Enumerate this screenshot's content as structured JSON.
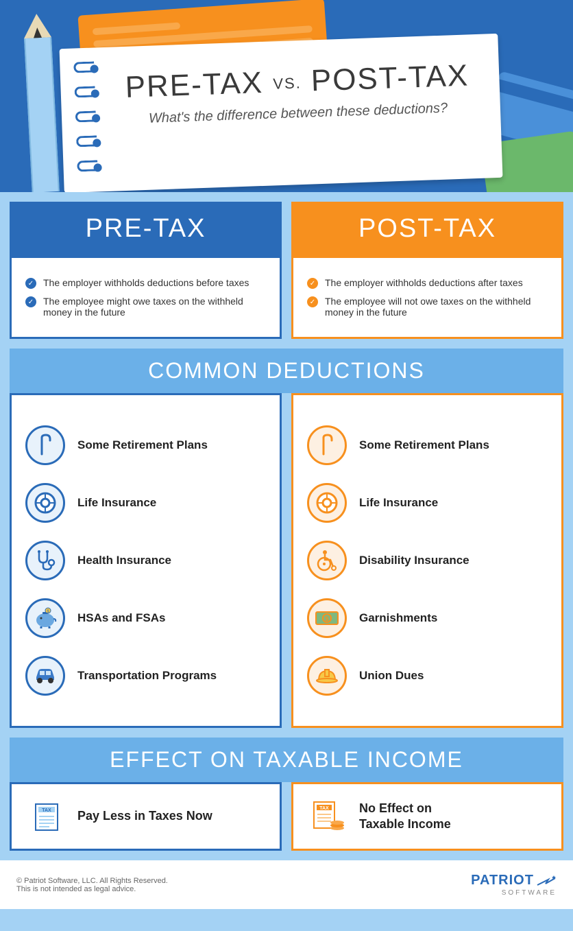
{
  "hero": {
    "title_left": "PRE-TAX",
    "title_vs": "VS.",
    "title_right": "POST-TAX",
    "subtitle": "What's the difference between these deductions?"
  },
  "columns": {
    "pre": {
      "header": "PRE-TAX",
      "color": "#2a6bb8"
    },
    "post": {
      "header": "POST-TAX",
      "color": "#f7901e"
    }
  },
  "intro": {
    "pre": [
      "The employer withholds deductions before taxes",
      "The employee might owe taxes on the withheld money in the future"
    ],
    "post": [
      "The employer withholds deductions after taxes",
      "The employee will not owe taxes on the withheld money in the future"
    ]
  },
  "sections": {
    "common": "COMMON DEDUCTIONS",
    "effect": "EFFECT ON TAXABLE INCOME"
  },
  "deductions": {
    "pre": [
      {
        "icon": "cane",
        "label": "Some Retirement Plans"
      },
      {
        "icon": "lifebuoy",
        "label": "Life Insurance"
      },
      {
        "icon": "stethoscope",
        "label": "Health Insurance"
      },
      {
        "icon": "piggy",
        "label": "HSAs and FSAs"
      },
      {
        "icon": "car",
        "label": "Transportation Programs"
      }
    ],
    "post": [
      {
        "icon": "cane",
        "label": "Some Retirement Plans"
      },
      {
        "icon": "lifebuoy",
        "label": "Life Insurance"
      },
      {
        "icon": "wheelchair",
        "label": "Disability Insurance"
      },
      {
        "icon": "cash",
        "label": "Garnishments"
      },
      {
        "icon": "hardhat",
        "label": "Union Dues"
      }
    ]
  },
  "effect": {
    "pre": "Pay Less in Taxes Now",
    "post": "No Effect on\nTaxable Income"
  },
  "footer": {
    "copyright": "© Patriot Software, LLC. All Rights Reserved.",
    "disclaimer": "This is not intended as legal advice.",
    "logo_name": "PATRIOT",
    "logo_sub": "SOFTWARE"
  },
  "colors": {
    "blue": "#2a6bb8",
    "orange": "#f7901e",
    "lightblue": "#a4d2f4",
    "midblue": "#6bb0e8"
  }
}
